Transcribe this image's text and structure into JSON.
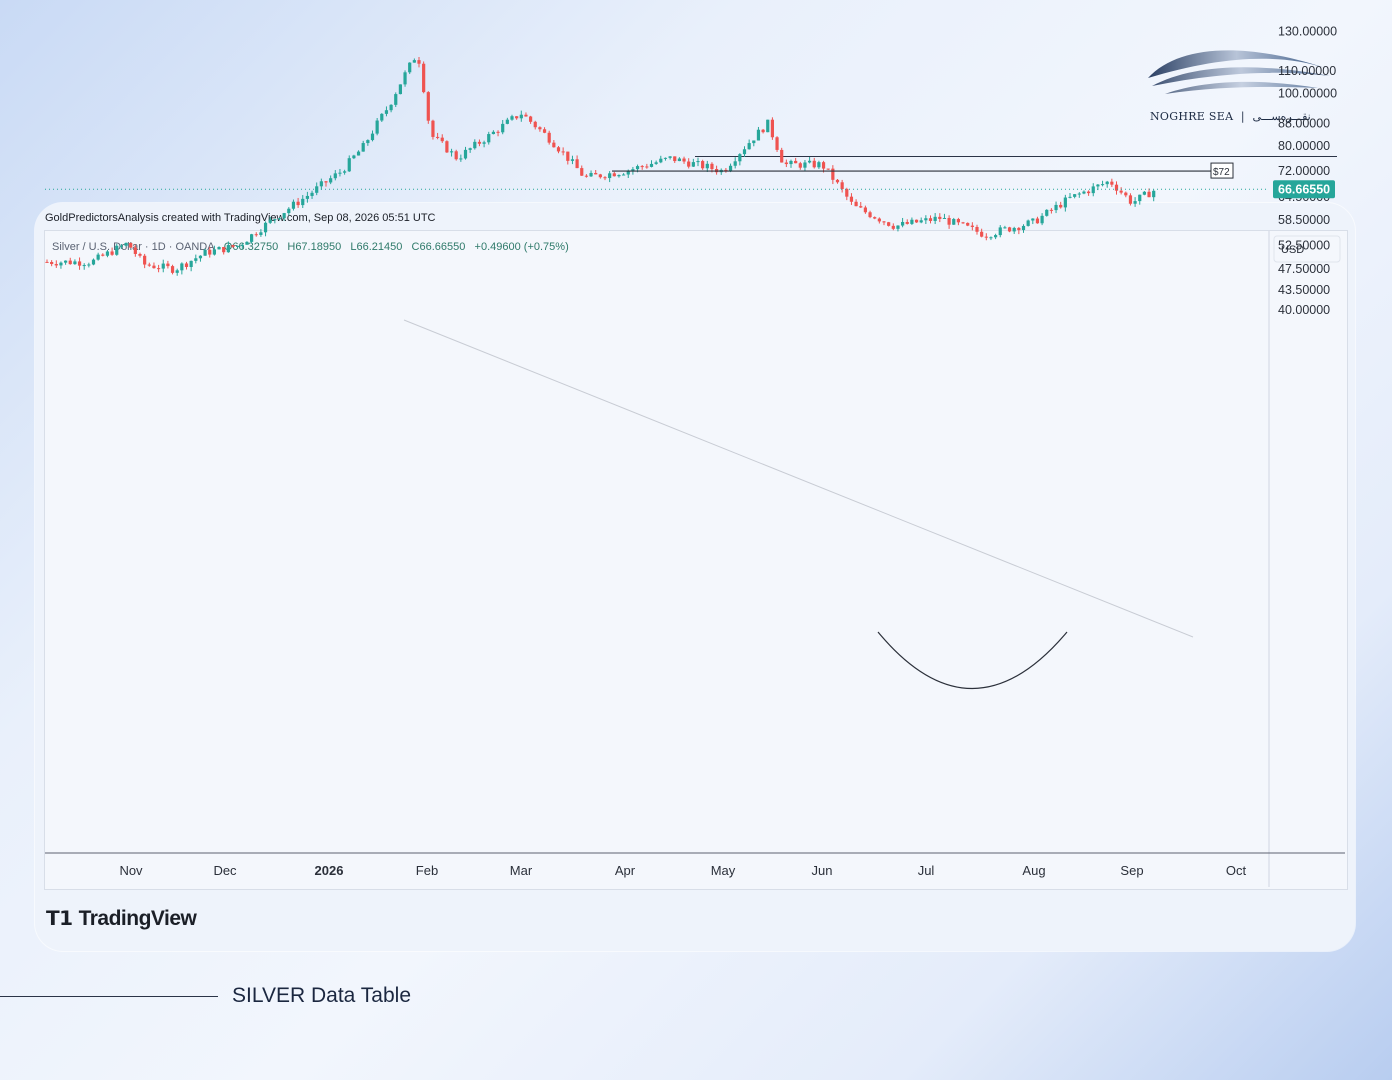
{
  "brand": {
    "name_en": "NOGHRE SEA",
    "name_fa": "نقـــره‌ســـی"
  },
  "credit": "GoldPredictorsAnalysis created with TradingView.com, Sep 08, 2026 05:51 UTC",
  "legend": {
    "symbol": "Silver / U.S. Dollar · 1D · OANDA",
    "open": "O66.32750",
    "high": "H67.18950",
    "low": "L66.21450",
    "close": "C66.66550",
    "change": "+0.49600 (+0.75%)"
  },
  "footer": {
    "logo": "TradingView",
    "title": "SILVER Data Table"
  },
  "colors": {
    "up": "#26a69a",
    "down": "#ef5350",
    "accent": "#26a69a"
  },
  "chart_data": {
    "type": "candlestick",
    "currency": "USD",
    "scale": "log",
    "ylim": [
      36,
      135
    ],
    "y_ticks": [
      "130.00000",
      "110.00000",
      "100.00000",
      "88.00000",
      "80.00000",
      "72.00000",
      "64.50000",
      "58.50000",
      "52.50000",
      "47.50000",
      "43.50000",
      "40.00000"
    ],
    "y_tick_values": [
      130,
      110,
      100,
      88,
      80,
      72,
      64.5,
      58.5,
      52.5,
      47.5,
      43.5,
      40
    ],
    "x_ticks": [
      "Nov",
      "Dec",
      "2026",
      "Feb",
      "Mar",
      "Apr",
      "May",
      "Jun",
      "Jul",
      "Aug",
      "Sep",
      "Oct"
    ],
    "last_price": "66.66550",
    "last_price_value": 66.6655,
    "resistance": {
      "label": "$72",
      "value": 72
    },
    "monthly_close_path": [
      [
        "Oct 20",
        49
      ],
      [
        "Oct 31",
        53
      ],
      [
        "Nov 5",
        48.5
      ],
      [
        "Nov 15",
        47.5
      ],
      [
        "Nov 25",
        51
      ],
      [
        "Dec 5",
        52.5
      ],
      [
        "Dec 15",
        58.5
      ],
      [
        "Dec 25",
        64.5
      ],
      [
        "Jan 5",
        72
      ],
      [
        "Jan 12",
        80
      ],
      [
        "Jan 20",
        95
      ],
      [
        "Jan 29",
        119
      ],
      [
        "Feb 2",
        84
      ],
      [
        "Feb 10",
        76
      ],
      [
        "Feb 20",
        84
      ],
      [
        "Mar 1",
        92
      ],
      [
        "Mar 10",
        82
      ],
      [
        "Mar 20",
        70
      ],
      [
        "Apr 1",
        72
      ],
      [
        "Apr 15",
        76
      ],
      [
        "May 1",
        72
      ],
      [
        "May 15",
        88
      ],
      [
        "May 20",
        74
      ],
      [
        "Jun 1",
        74
      ],
      [
        "Jun 10",
        62
      ],
      [
        "Jun 22",
        57
      ],
      [
        "Jul 5",
        59
      ],
      [
        "Jul 18",
        55
      ],
      [
        "Aug 1",
        58
      ],
      [
        "Aug 12",
        64
      ],
      [
        "Aug 25",
        69
      ],
      [
        "Sep 1",
        63
      ],
      [
        "Sep 8",
        66.6655
      ]
    ]
  }
}
